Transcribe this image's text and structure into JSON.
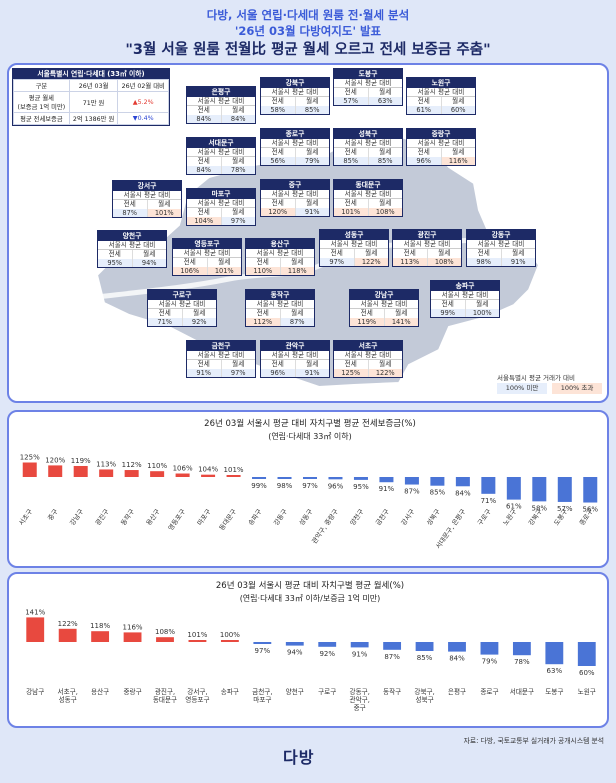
{
  "header": {
    "line1": "다방, 서울 연립·다세대 원룸 전·월세 분석",
    "line2": "'26년 03월 다방여지도' 발표",
    "line3": "\"3월 서울 원룸 전월比 평균 월세 오르고 전세 보증금 주춤\""
  },
  "summary": {
    "title": "서울특별시 연립·다세대 (33㎡ 이하)",
    "h_col": "구분",
    "h_cur": "26년 03월",
    "h_prev": "26년 02월 대비",
    "r1_label": "평균 월세\n(보증금 1억 미만)",
    "r1_value": "71만 원",
    "r1_change": "▲5.2%",
    "r2_label": "평균 전세보증금",
    "r2_value": "2억 1386만 원",
    "r2_change": "▼0.4%"
  },
  "box_sub": "서울시 평균 대비",
  "box_jeonse": "전세",
  "box_wolse": "월세",
  "districts": [
    {
      "name": "은평구",
      "j": "84%",
      "w": "84%"
    },
    {
      "name": "강북구",
      "j": "58%",
      "w": "85%"
    },
    {
      "name": "도봉구",
      "j": "57%",
      "w": "63%"
    },
    {
      "name": "노원구",
      "j": "61%",
      "w": "60%"
    },
    {
      "name": "서대문구",
      "j": "84%",
      "w": "78%"
    },
    {
      "name": "종로구",
      "j": "56%",
      "w": "79%"
    },
    {
      "name": "성북구",
      "j": "85%",
      "w": "85%"
    },
    {
      "name": "중랑구",
      "j": "96%",
      "w": "116%"
    },
    {
      "name": "강서구",
      "j": "87%",
      "w": "101%"
    },
    {
      "name": "마포구",
      "j": "104%",
      "w": "97%"
    },
    {
      "name": "중구",
      "j": "120%",
      "w": "91%"
    },
    {
      "name": "동대문구",
      "j": "101%",
      "w": "108%"
    },
    {
      "name": "양천구",
      "j": "95%",
      "w": "94%"
    },
    {
      "name": "영등포구",
      "j": "106%",
      "w": "101%"
    },
    {
      "name": "용산구",
      "j": "110%",
      "w": "118%"
    },
    {
      "name": "성동구",
      "j": "97%",
      "w": "122%"
    },
    {
      "name": "광진구",
      "j": "113%",
      "w": "108%"
    },
    {
      "name": "강동구",
      "j": "98%",
      "w": "91%"
    },
    {
      "name": "송파구",
      "j": "99%",
      "w": "100%"
    },
    {
      "name": "구로구",
      "j": "71%",
      "w": "92%"
    },
    {
      "name": "동작구",
      "j": "112%",
      "w": "87%"
    },
    {
      "name": "강남구",
      "j": "119%",
      "w": "141%"
    },
    {
      "name": "금천구",
      "j": "91%",
      "w": "97%"
    },
    {
      "name": "관악구",
      "j": "96%",
      "w": "91%"
    },
    {
      "name": "서초구",
      "j": "125%",
      "w": "122%"
    }
  ],
  "legend": {
    "title": "서울특별시 평균 거래가 대비",
    "below": "100% 미만",
    "above": "100% 초과",
    "below_color": "#e6eefb",
    "above_color": "#fde4d7"
  },
  "chart_data": [
    {
      "type": "bar",
      "title": "26년 03월 서울시 평균 대비 자치구별 평균 전세보증금(%)",
      "subtitle": "(연립·다세대 33㎡ 이하)",
      "baseline": 100,
      "categories": [
        "서초구",
        "중구",
        "강남구",
        "광진구",
        "동작구",
        "용산구",
        "영등포구",
        "마포구",
        "동대문구",
        "송파구",
        "강동구",
        "성동구",
        "관악구, 중랑구",
        "양천구",
        "금천구",
        "강서구",
        "성북구",
        "서대문구, 은평구",
        "구로구",
        "노원구",
        "강북구",
        "도봉구",
        "종로구"
      ],
      "values": [
        125,
        120,
        119,
        113,
        112,
        110,
        106,
        104,
        101,
        99,
        98,
        97,
        96,
        95,
        91,
        87,
        85,
        84,
        71,
        61,
        58,
        57,
        56
      ],
      "value_labels": [
        "125%",
        "120%",
        "119%",
        "113%",
        "112%",
        "110%",
        "106%",
        "104%",
        "101%",
        "99%",
        "98%",
        "97%",
        "96%",
        "95%",
        "91%",
        "87%",
        "85%",
        "84%",
        "71%",
        "61%",
        "58%",
        "57%",
        "56%"
      ],
      "colors": {
        "above": "#e8493f",
        "below": "#4a74d6"
      }
    },
    {
      "type": "bar",
      "title": "26년 03월 서울시 평균 대비 자치구별 평균 월세(%)",
      "subtitle": "(연립·다세대 33㎡ 이하/보증금 1억 미만)",
      "baseline": 100,
      "categories": [
        "강남구",
        "서초구,\n성동구",
        "용산구",
        "중랑구",
        "광진구,\n동대문구",
        "강서구,\n영등포구",
        "송파구",
        "금천구,\n마포구",
        "양천구",
        "구로구",
        "강동구,\n관악구,\n중구",
        "동작구",
        "강북구,\n성북구",
        "은평구",
        "종로구",
        "서대문구",
        "도봉구",
        "노원구"
      ],
      "values": [
        141,
        122,
        118,
        116,
        108,
        101,
        100,
        97,
        94,
        92,
        91,
        87,
        85,
        84,
        79,
        78,
        63,
        60
      ],
      "value_labels": [
        "141%",
        "122%",
        "118%",
        "116%",
        "108%",
        "101%",
        "100%",
        "97%",
        "94%",
        "92%",
        "91%",
        "87%",
        "85%",
        "84%",
        "79%",
        "78%",
        "63%",
        "60%"
      ],
      "colors": {
        "above": "#e8493f",
        "below": "#4a74d6"
      }
    }
  ],
  "footer": {
    "source": "자료: 다방, 국토교통부 실거래가 공개시스템 분석",
    "logo": "다방"
  }
}
